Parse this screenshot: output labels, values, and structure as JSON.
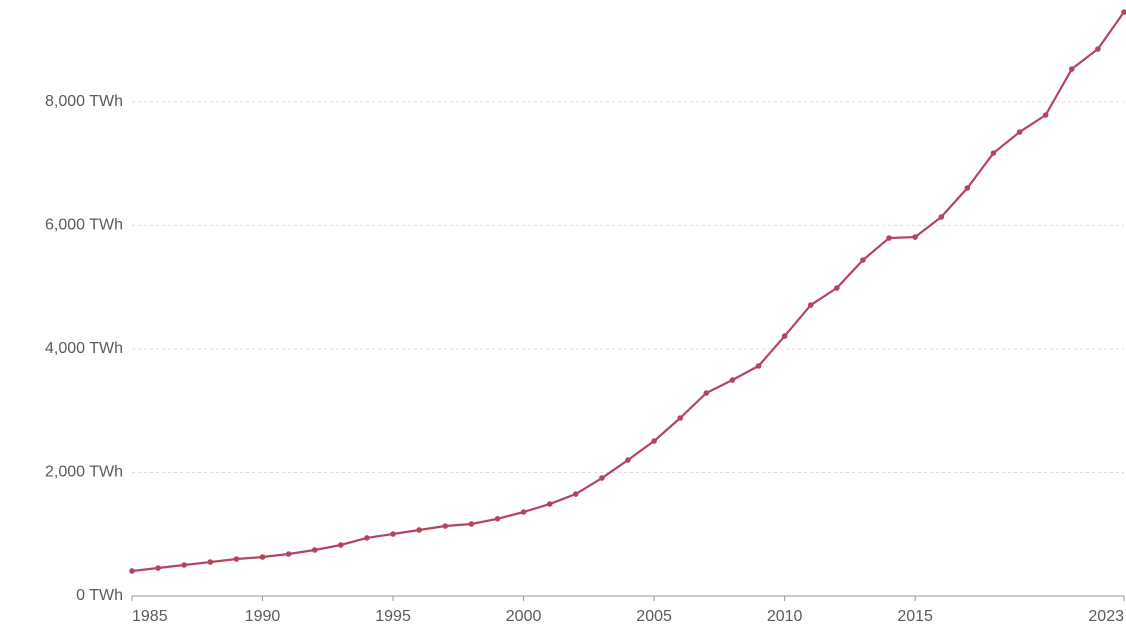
{
  "chart_data": {
    "type": "line",
    "x": [
      1985,
      1986,
      1987,
      1988,
      1989,
      1990,
      1991,
      1992,
      1993,
      1994,
      1995,
      1996,
      1997,
      1998,
      1999,
      2000,
      2001,
      2002,
      2003,
      2004,
      2005,
      2006,
      2007,
      2008,
      2009,
      2010,
      2011,
      2012,
      2013,
      2014,
      2015,
      2016,
      2017,
      2018,
      2019,
      2020,
      2021,
      2022,
      2023
    ],
    "series": [
      {
        "color": "#b5445f",
        "values": [
          405,
          453,
          502,
          550,
          599,
          631,
          680,
          745,
          826,
          940,
          1004,
          1069,
          1133,
          1166,
          1250,
          1360,
          1489,
          1651,
          1910,
          2202,
          2509,
          2882,
          3287,
          3497,
          3724,
          4209,
          4711,
          4987,
          5440,
          5796,
          5812,
          6136,
          6606,
          7172,
          7512,
          7788,
          8532,
          8856,
          9455
        ]
      }
    ],
    "xlim": [
      1985,
      2023
    ],
    "xticks": [
      1985,
      1990,
      1995,
      2000,
      2005,
      2010,
      2015,
      2023
    ],
    "ylim": [
      0,
      9650
    ],
    "yticks": [
      {
        "value": 0,
        "label": "0 TWh"
      },
      {
        "value": 2000,
        "label": "2,000 TWh"
      },
      {
        "value": 4000,
        "label": "4,000 TWh"
      },
      {
        "value": 6000,
        "label": "6,000 TWh"
      },
      {
        "value": 8000,
        "label": "8,000 TWh"
      }
    ],
    "grid": true
  }
}
